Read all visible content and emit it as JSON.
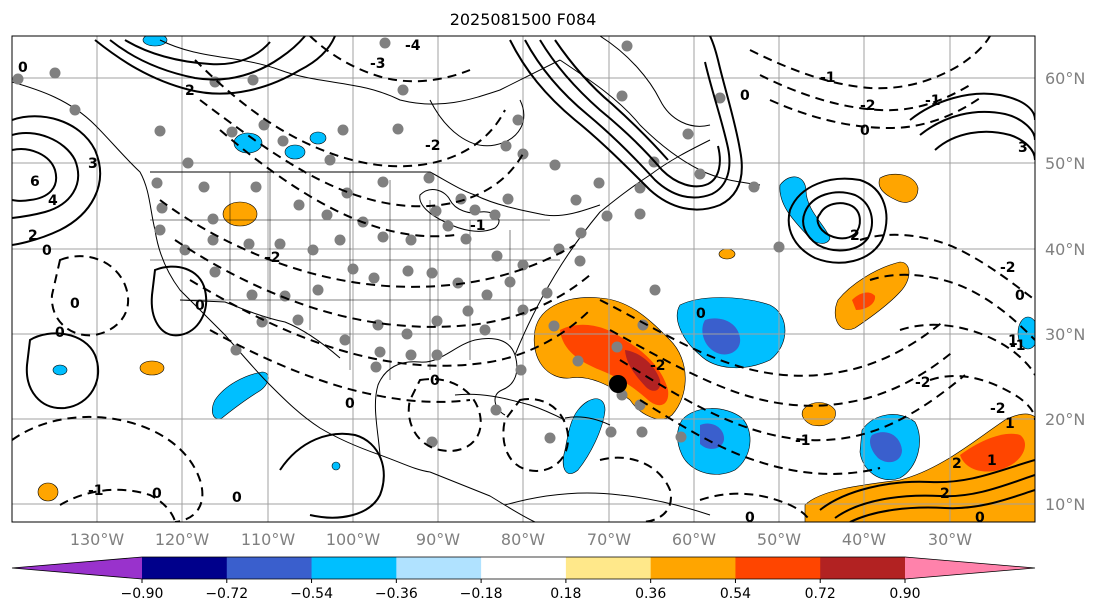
{
  "title": "2025081500 F084",
  "lon_labels": [
    "130°W",
    "120°W",
    "110°W",
    "100°W",
    "90°W",
    "80°W",
    "70°W",
    "60°W",
    "50°W",
    "40°W",
    "30°W"
  ],
  "lat_labels": [
    "60°N",
    "50°N",
    "40°N",
    "30°N",
    "20°N",
    "10°N"
  ],
  "colorbar": {
    "colors": [
      "#9932cc",
      "#00008b",
      "#3a5fcd",
      "#00bfff",
      "#b0e2ff",
      "#ffffff",
      "#ffe88a",
      "#ffa500",
      "#ff4500",
      "#b22222",
      "#ff82ab"
    ],
    "tick_labels": [
      "−0.90",
      "−0.72",
      "−0.54",
      "−0.36",
      "−0.18",
      "0.18",
      "0.36",
      "0.54",
      "0.72",
      "0.90"
    ]
  },
  "contour_labels": {
    "neg": [
      "-4",
      "-3",
      "-2",
      "-2",
      "-2",
      "-2",
      "-2",
      "-2",
      "-2",
      "-1",
      "-1",
      "-1",
      "-1",
      "-1",
      "-1"
    ],
    "zero": [
      "0",
      "0",
      "0",
      "0",
      "0",
      "0",
      "0",
      "0",
      "0",
      "0",
      "0",
      "0",
      "0",
      "0",
      "0"
    ],
    "pos": [
      "2",
      "4",
      "6",
      "3",
      "2",
      "3",
      "1",
      "2",
      "1",
      "1",
      "2",
      "2"
    ]
  },
  "colors": {
    "map_line": "#000000",
    "grid": "#a0a0a0",
    "station": "#808080"
  }
}
